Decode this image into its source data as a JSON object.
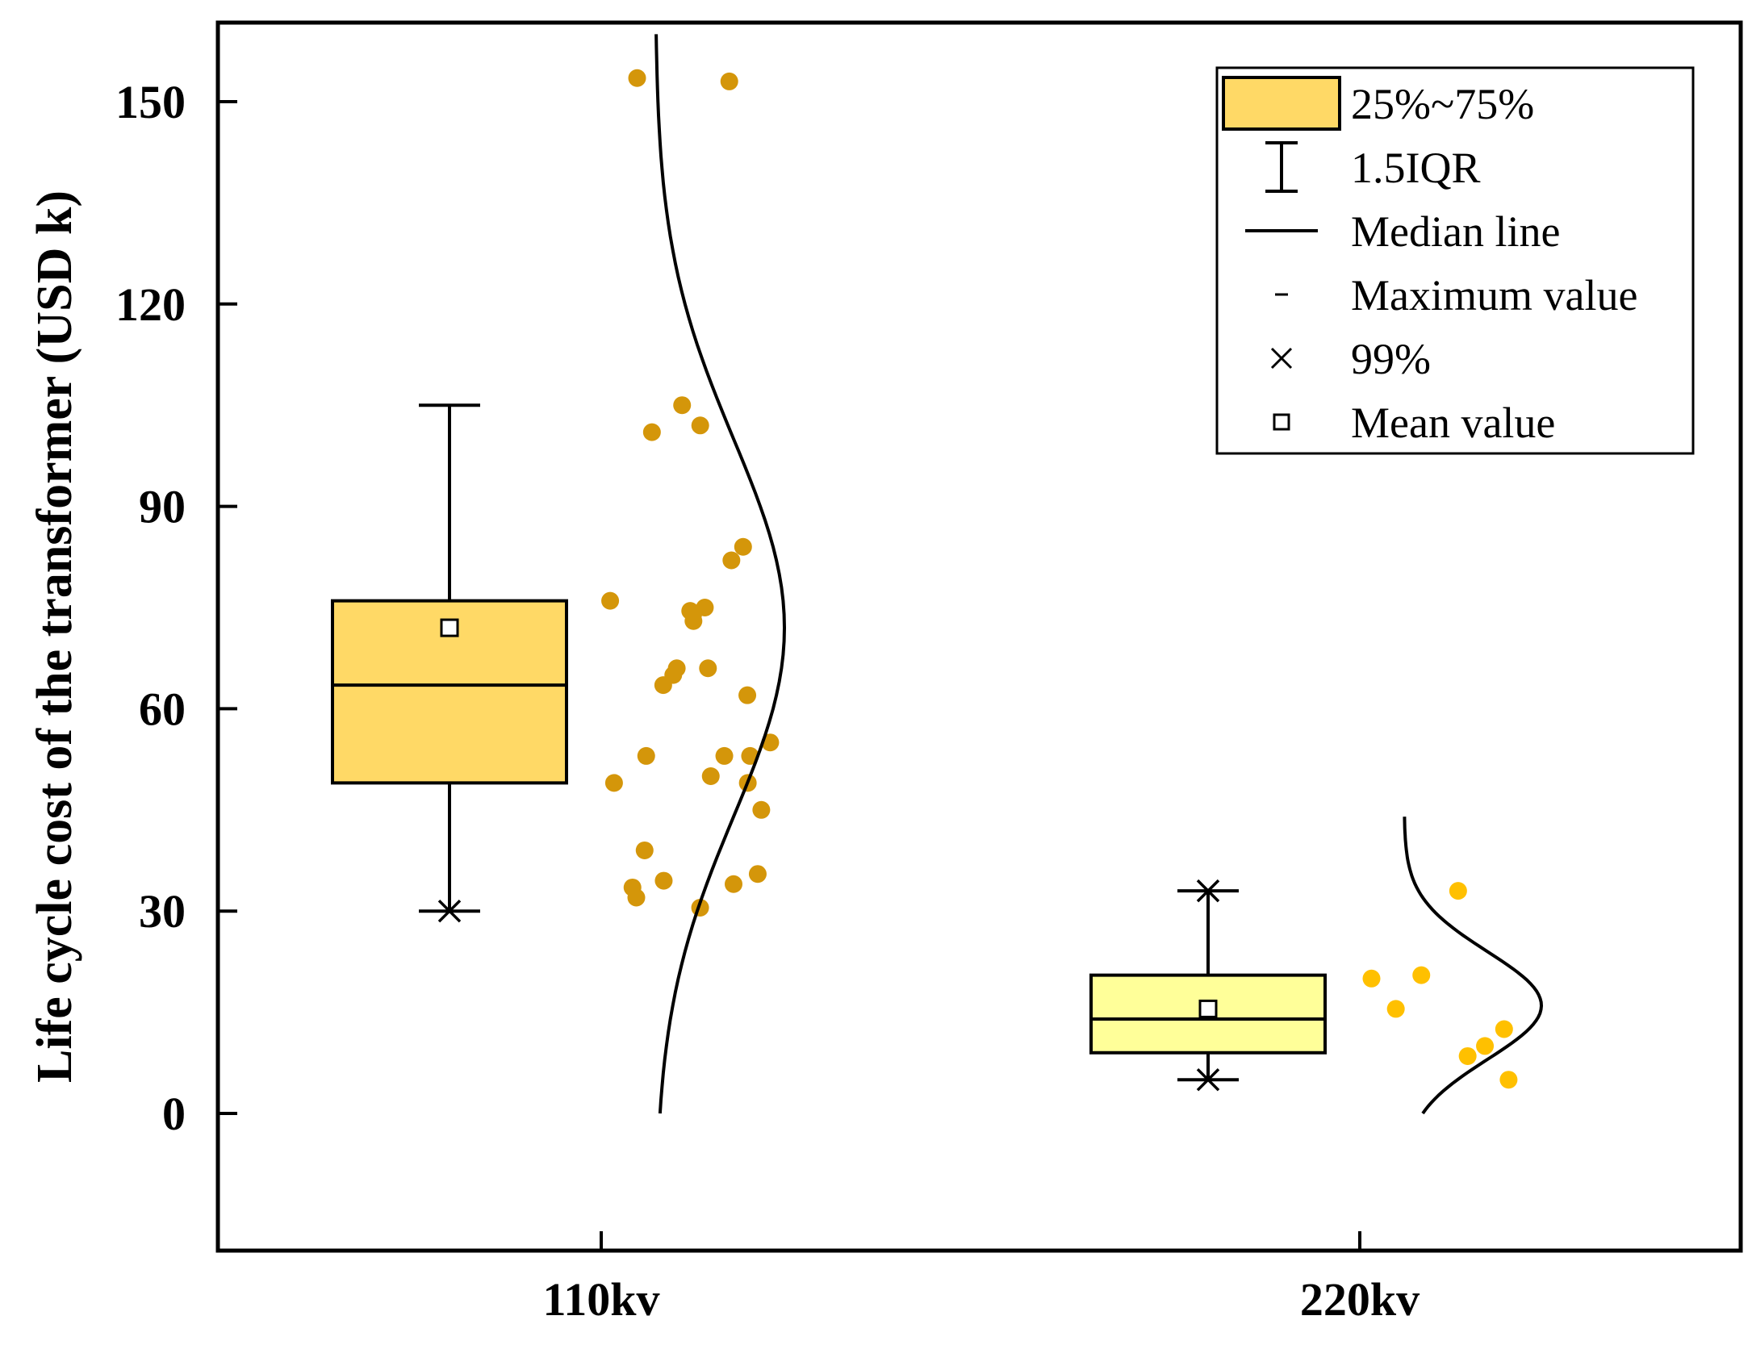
{
  "chart_data": {
    "type": "box",
    "ylabel": "Life cycle cost of the transformer (USD k)",
    "xlabel": "",
    "ylim": [
      -20,
      160
    ],
    "yticks": [
      0,
      30,
      60,
      90,
      120,
      150
    ],
    "categories": [
      "110kv",
      "220kv"
    ],
    "groups": [
      {
        "name": "110kv",
        "box_color": "#ffd966",
        "point_color": "#d4960a",
        "q1": 49,
        "median": 63.5,
        "q3": 76,
        "mean": 72,
        "whisker_low": 30,
        "whisker_high": 105,
        "percentile_99": 30,
        "points": [
          153.5,
          153,
          102,
          105,
          101,
          84,
          82,
          74.5,
          73,
          74,
          76,
          75,
          66,
          65,
          62,
          63.5,
          66,
          53,
          55,
          53,
          53,
          49,
          49,
          50,
          45,
          39,
          34,
          33.5,
          35.5,
          32,
          34.5,
          30.5
        ],
        "density_range": [
          0,
          160
        ],
        "density_peak": 72
      },
      {
        "name": "220kv",
        "box_color": "#ffff99",
        "point_color": "#ffc000",
        "q1": 9,
        "median": 14,
        "q3": 20.5,
        "mean": 15.5,
        "whisker_low": 5,
        "whisker_high": 33,
        "percentile_99": 33,
        "points": [
          33,
          20,
          20.5,
          12.5,
          15.5,
          5,
          8.5,
          10
        ],
        "density_range": [
          0,
          44
        ],
        "density_peak": 16
      }
    ],
    "legend": [
      {
        "label": "25%~75%",
        "symbol": "box"
      },
      {
        "label": "1.5IQR",
        "symbol": "whisker"
      },
      {
        "label": "Median line",
        "symbol": "line"
      },
      {
        "label": "Maximum value",
        "symbol": "dash"
      },
      {
        "label": "99%",
        "symbol": "cross"
      },
      {
        "label": "Mean value",
        "symbol": "square"
      }
    ],
    "legend_position": "top-right"
  }
}
